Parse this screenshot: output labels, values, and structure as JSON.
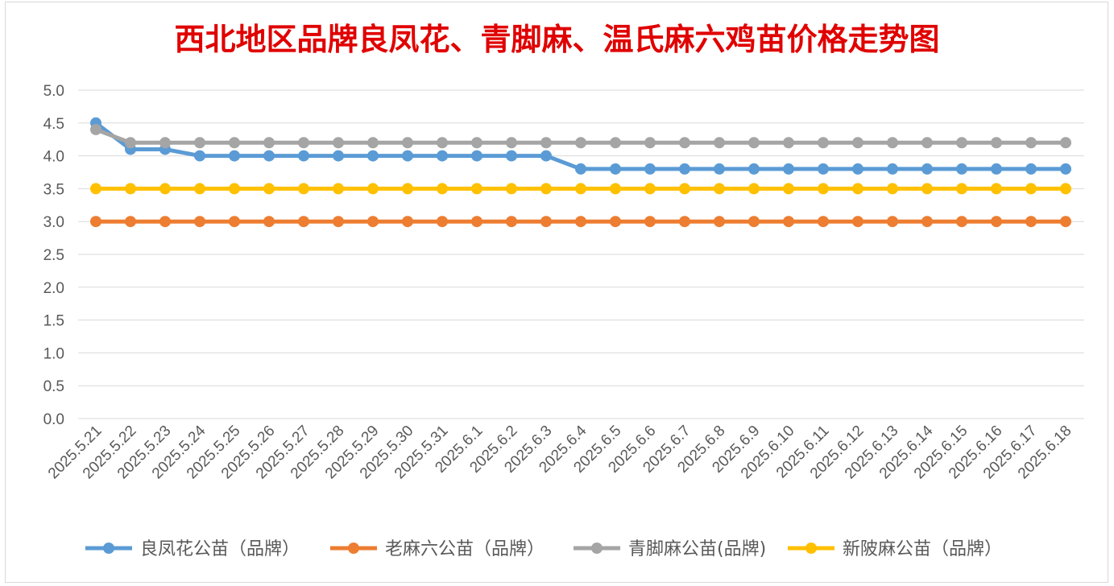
{
  "chart_data": {
    "type": "line",
    "title": "西北地区品牌良凤花、青脚麻、温氏麻六鸡苗价格走势图",
    "xlabel": "",
    "ylabel": "",
    "ylim": [
      0,
      5
    ],
    "yticks": [
      "0.0",
      "0.5",
      "1.0",
      "1.5",
      "2.0",
      "2.5",
      "3.0",
      "3.5",
      "4.0",
      "4.5",
      "5.0"
    ],
    "grid": true,
    "legend": "bottom",
    "x": [
      "2025.5.21",
      "2025.5.22",
      "2025.5.23",
      "2025.5.24",
      "2025.5.25",
      "2025.5.26",
      "2025.5.27",
      "2025.5.28",
      "2025.5.29",
      "2025.5.30",
      "2025.5.31",
      "2025.6.1",
      "2025.6.2",
      "2025.6.3",
      "2025.6.4",
      "2025.6.5",
      "2025.6.6",
      "2025.6.7",
      "2025.6.8",
      "2025.6.9",
      "2025.6.10",
      "2025.6.11",
      "2025.6.12",
      "2025.6.13",
      "2025.6.14",
      "2025.6.15",
      "2025.6.16",
      "2025.6.17",
      "2025.6.18"
    ],
    "series": [
      {
        "name": "良凤花公苗（品牌）",
        "color": "#5b9bd5",
        "values": [
          4.5,
          4.1,
          4.1,
          4.0,
          4.0,
          4.0,
          4.0,
          4.0,
          4.0,
          4.0,
          4.0,
          4.0,
          4.0,
          4.0,
          3.8,
          3.8,
          3.8,
          3.8,
          3.8,
          3.8,
          3.8,
          3.8,
          3.8,
          3.8,
          3.8,
          3.8,
          3.8,
          3.8,
          3.8
        ]
      },
      {
        "name": "老麻六公苗（品牌）",
        "color": "#ed7d31",
        "values": [
          3.0,
          3.0,
          3.0,
          3.0,
          3.0,
          3.0,
          3.0,
          3.0,
          3.0,
          3.0,
          3.0,
          3.0,
          3.0,
          3.0,
          3.0,
          3.0,
          3.0,
          3.0,
          3.0,
          3.0,
          3.0,
          3.0,
          3.0,
          3.0,
          3.0,
          3.0,
          3.0,
          3.0,
          3.0
        ]
      },
      {
        "name": "青脚麻公苗(品牌)",
        "color": "#a5a5a5",
        "values": [
          4.4,
          4.2,
          4.2,
          4.2,
          4.2,
          4.2,
          4.2,
          4.2,
          4.2,
          4.2,
          4.2,
          4.2,
          4.2,
          4.2,
          4.2,
          4.2,
          4.2,
          4.2,
          4.2,
          4.2,
          4.2,
          4.2,
          4.2,
          4.2,
          4.2,
          4.2,
          4.2,
          4.2,
          4.2
        ]
      },
      {
        "name": "新陂麻公苗（品牌）",
        "color": "#ffc000",
        "values": [
          3.5,
          3.5,
          3.5,
          3.5,
          3.5,
          3.5,
          3.5,
          3.5,
          3.5,
          3.5,
          3.5,
          3.5,
          3.5,
          3.5,
          3.5,
          3.5,
          3.5,
          3.5,
          3.5,
          3.5,
          3.5,
          3.5,
          3.5,
          3.5,
          3.5,
          3.5,
          3.5,
          3.5,
          3.5
        ]
      }
    ]
  }
}
